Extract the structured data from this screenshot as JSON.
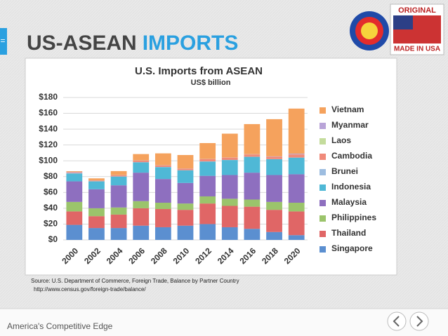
{
  "slide": {
    "tab": "=",
    "title_dark": "US-ASEAN",
    "title_blue": "IMPORTS",
    "source": [
      "Source: U.S. Department of Commerce, Foreign Trade, Balance by Partner Country",
      "http://www.census.gov/foreign-trade/balance/"
    ],
    "footer": "America's Competitive Edge",
    "badge": [
      "ORIGINAL",
      "MADE IN USA"
    ]
  },
  "chart_data": {
    "type": "stacked-bar",
    "title": "U.S. Imports from ASEAN",
    "subtitle": "US$ billion",
    "categories": [
      "2000",
      "2002",
      "2004",
      "2006",
      "2008",
      "2010",
      "2012",
      "2014",
      "2016",
      "2018",
      "2020"
    ],
    "series": [
      {
        "name": "Singapore",
        "color": "#5b8fd0",
        "values": [
          19,
          15,
          15,
          18,
          16,
          18,
          20,
          16,
          14,
          10,
          6
        ]
      },
      {
        "name": "Thailand",
        "color": "#e06666",
        "values": [
          17,
          15,
          17,
          22,
          23,
          20,
          26,
          27,
          28,
          28,
          30
        ]
      },
      {
        "name": "Philippines",
        "color": "#9bc46b",
        "values": [
          12,
          10,
          9,
          9,
          8,
          8,
          9,
          9,
          9,
          10,
          11
        ]
      },
      {
        "name": "Malaysia",
        "color": "#8e6fbf",
        "values": [
          26,
          24,
          28,
          36,
          30,
          26,
          26,
          30,
          34,
          34,
          36
        ]
      },
      {
        "name": "Indonesia",
        "color": "#4fb8d6",
        "values": [
          10,
          10,
          11,
          13,
          15,
          16,
          18,
          19,
          20,
          20,
          21
        ]
      },
      {
        "name": "Brunei",
        "color": "#9dbde0",
        "values": [
          0.5,
          0.2,
          0.3,
          0.3,
          0.2,
          0.1,
          0.2,
          0.1,
          0.1,
          0.1,
          0.1
        ]
      },
      {
        "name": "Cambodia",
        "color": "#f08a7a",
        "values": [
          1,
          1,
          1.5,
          2,
          2,
          2,
          3,
          3,
          3,
          3,
          4
        ]
      },
      {
        "name": "Laos",
        "color": "#c4dc9c",
        "values": [
          0.1,
          0.1,
          0.1,
          0.1,
          0.1,
          0.1,
          0.1,
          0.1,
          0.1,
          0.1,
          0.1
        ]
      },
      {
        "name": "Myanmar",
        "color": "#b9a4d8",
        "values": [
          0.5,
          0.1,
          0.1,
          0.1,
          0.1,
          0.1,
          0.1,
          0.1,
          0.2,
          0.4,
          0.8
        ]
      },
      {
        "name": "Vietnam",
        "color": "#f5a25d",
        "values": [
          0.8,
          2.4,
          5,
          8,
          15,
          17,
          20,
          30,
          38,
          47,
          57
        ]
      }
    ],
    "ylim": [
      0,
      180
    ],
    "yticks": [
      {
        "value": 0,
        "label": "$0"
      },
      {
        "value": 20,
        "label": "$20"
      },
      {
        "value": 40,
        "label": "$40"
      },
      {
        "value": 60,
        "label": "$60"
      },
      {
        "value": 80,
        "label": "$80"
      },
      {
        "value": 100,
        "label": "$100"
      },
      {
        "value": 120,
        "label": "$120"
      },
      {
        "value": 140,
        "label": "$140"
      },
      {
        "value": 160,
        "label": "$160"
      },
      {
        "value": 180,
        "label": "$180"
      }
    ],
    "grid": true,
    "legend": "right"
  }
}
